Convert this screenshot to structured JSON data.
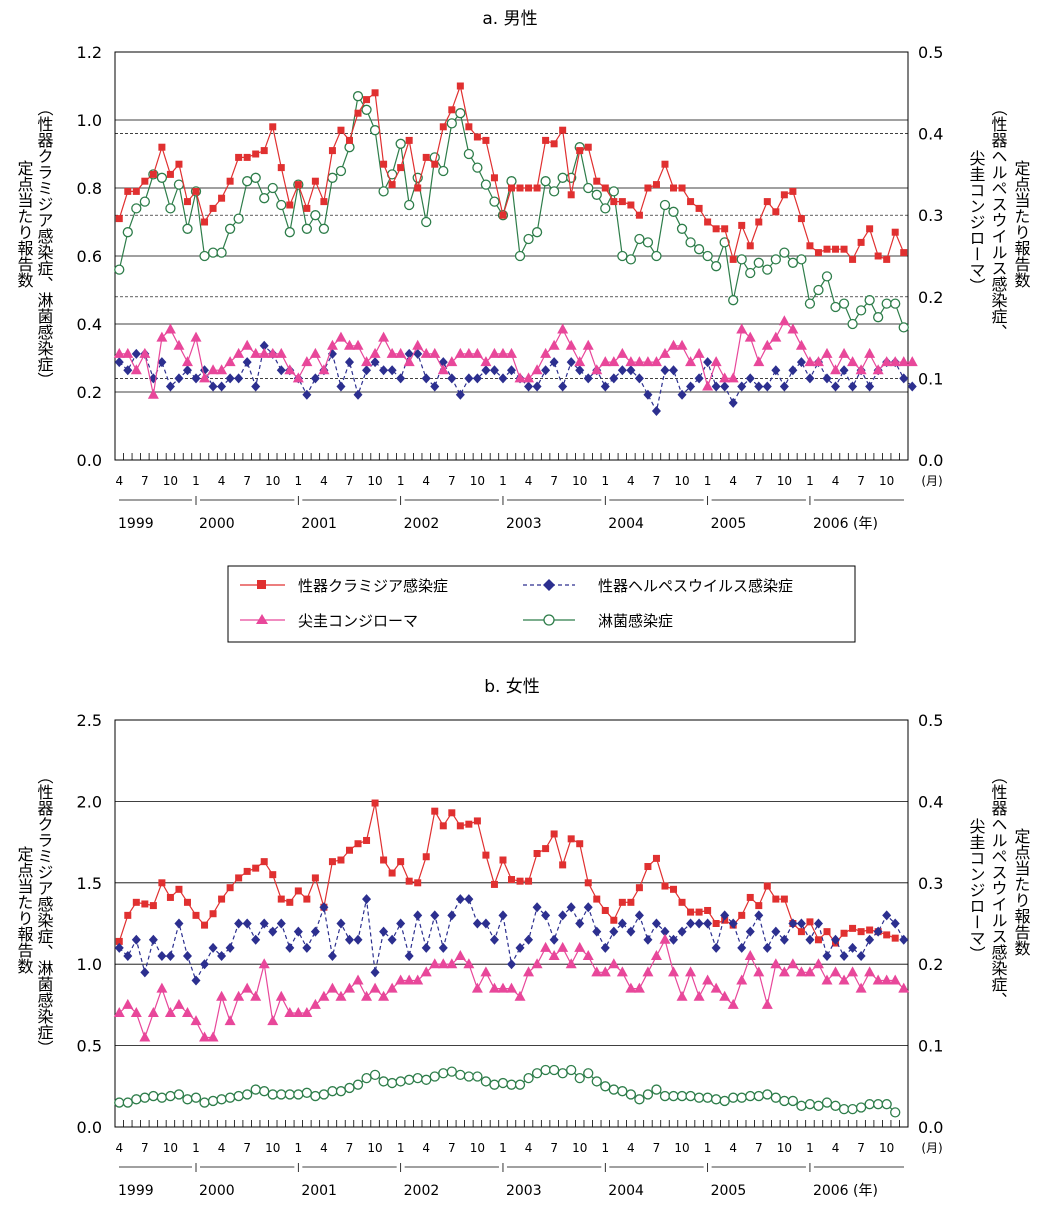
{
  "chart_data": [
    {
      "type": "line",
      "title": "a. 男性",
      "left_axis_label": [
        "定点当たり報告数",
        "（性器クラミジア感染症、淋菌感染症）"
      ],
      "right_axis_label": [
        "定点当たり報告数",
        "（性器ヘルペスウイルス感染症、",
        "尖圭コンジローマ）"
      ],
      "left_ylim": [
        0,
        1.2
      ],
      "left_ticks": [
        "0.0",
        "0.2",
        "0.4",
        "0.6",
        "0.8",
        "1.0",
        "1.2"
      ],
      "right_ylim": [
        0,
        0.5
      ],
      "right_ticks": [
        "0.0",
        "0.1",
        "0.2",
        "0.3",
        "0.4",
        "0.5"
      ],
      "x_start": "1999-04",
      "x_month_labels": [
        "4",
        "7",
        "10",
        "1",
        "4",
        "7",
        "10",
        "1",
        "4",
        "7",
        "10",
        "1",
        "4",
        "7",
        "10",
        "1",
        "4",
        "7",
        "10",
        "1",
        "4",
        "7",
        "10",
        "1",
        "4",
        "7",
        "10",
        "1",
        "4",
        "7",
        "10",
        "(月)"
      ],
      "x_year_labels": [
        "1999",
        "2000",
        "2001",
        "2002",
        "2003",
        "2004",
        "2005",
        "2006 (年)"
      ],
      "series": [
        {
          "name": "性器クラミジア感染症",
          "axis": "left",
          "color": "#e03030",
          "marker": "square",
          "style": "solid",
          "values": [
            0.71,
            0.79,
            0.79,
            0.82,
            0.84,
            0.92,
            0.84,
            0.87,
            0.76,
            0.79,
            0.7,
            0.74,
            0.77,
            0.82,
            0.89,
            0.89,
            0.9,
            0.91,
            0.98,
            0.86,
            0.75,
            0.81,
            0.74,
            0.82,
            0.76,
            0.91,
            0.97,
            0.94,
            1.02,
            1.06,
            1.08,
            0.87,
            0.81,
            0.86,
            0.94,
            0.8,
            0.89,
            0.87,
            0.98,
            1.03,
            1.1,
            0.98,
            0.95,
            0.94,
            0.83,
            0.72,
            0.8,
            0.8,
            0.8,
            0.8,
            0.94,
            0.93,
            0.97,
            0.78,
            0.91,
            0.92,
            0.82,
            0.8,
            0.76,
            0.76,
            0.75,
            0.72,
            0.8,
            0.81,
            0.87,
            0.8,
            0.8,
            0.76,
            0.74,
            0.7,
            0.68,
            0.68,
            0.59,
            0.69,
            0.63,
            0.7,
            0.76,
            0.73,
            0.78,
            0.79,
            0.71,
            0.63,
            0.61,
            0.62,
            0.62,
            0.62,
            0.59,
            0.64,
            0.68,
            0.6,
            0.59,
            0.67,
            0.61
          ]
        },
        {
          "name": "性器ヘルペスウイルス感染症",
          "axis": "right",
          "color": "#2c2f8f",
          "marker": "diamond",
          "style": "dashed",
          "values": [
            0.12,
            0.11,
            0.13,
            0.13,
            0.1,
            0.12,
            0.09,
            0.1,
            0.11,
            0.1,
            0.11,
            0.09,
            0.09,
            0.1,
            0.1,
            0.12,
            0.09,
            0.14,
            0.13,
            0.11,
            0.11,
            0.1,
            0.08,
            0.1,
            0.11,
            0.13,
            0.09,
            0.12,
            0.08,
            0.11,
            0.12,
            0.11,
            0.11,
            0.1,
            0.13,
            0.13,
            0.1,
            0.09,
            0.12,
            0.1,
            0.08,
            0.1,
            0.1,
            0.11,
            0.11,
            0.1,
            0.11,
            0.1,
            0.09,
            0.09,
            0.11,
            0.12,
            0.09,
            0.12,
            0.11,
            0.1,
            0.11,
            0.09,
            0.1,
            0.11,
            0.11,
            0.1,
            0.08,
            0.06,
            0.11,
            0.11,
            0.08,
            0.09,
            0.1,
            0.12,
            0.09,
            0.09,
            0.07,
            0.09,
            0.1,
            0.09,
            0.09,
            0.11,
            0.09,
            0.11,
            0.12,
            0.1,
            0.12,
            0.1,
            0.09,
            0.11,
            0.09,
            0.11,
            0.09,
            0.11,
            0.12,
            0.12,
            0.1,
            0.09
          ]
        },
        {
          "name": "尖圭コンジローマ",
          "axis": "right",
          "color": "#e8479a",
          "marker": "triangle",
          "style": "solid",
          "values": [
            0.13,
            0.13,
            0.11,
            0.13,
            0.08,
            0.15,
            0.16,
            0.14,
            0.12,
            0.15,
            0.1,
            0.11,
            0.11,
            0.12,
            0.13,
            0.14,
            0.13,
            0.13,
            0.13,
            0.13,
            0.11,
            0.1,
            0.12,
            0.13,
            0.11,
            0.14,
            0.15,
            0.14,
            0.14,
            0.12,
            0.13,
            0.15,
            0.13,
            0.13,
            0.12,
            0.14,
            0.13,
            0.13,
            0.11,
            0.12,
            0.13,
            0.13,
            0.13,
            0.12,
            0.13,
            0.13,
            0.13,
            0.1,
            0.1,
            0.11,
            0.13,
            0.14,
            0.16,
            0.14,
            0.12,
            0.14,
            0.11,
            0.12,
            0.12,
            0.13,
            0.12,
            0.12,
            0.12,
            0.12,
            0.13,
            0.14,
            0.14,
            0.12,
            0.13,
            0.09,
            0.12,
            0.1,
            0.1,
            0.16,
            0.15,
            0.12,
            0.14,
            0.15,
            0.17,
            0.16,
            0.14,
            0.12,
            0.12,
            0.13,
            0.11,
            0.13,
            0.12,
            0.11,
            0.13,
            0.11,
            0.12,
            0.12,
            0.12,
            0.12
          ]
        },
        {
          "name": "淋菌感染症",
          "axis": "left",
          "color": "#2e7d4a",
          "marker": "circle-open",
          "style": "solid",
          "values": [
            0.56,
            0.67,
            0.74,
            0.76,
            0.84,
            0.83,
            0.74,
            0.81,
            0.68,
            0.79,
            0.6,
            0.61,
            0.61,
            0.68,
            0.71,
            0.82,
            0.83,
            0.77,
            0.8,
            0.75,
            0.67,
            0.81,
            0.68,
            0.72,
            0.68,
            0.83,
            0.85,
            0.92,
            1.07,
            1.03,
            0.97,
            0.79,
            0.84,
            0.93,
            0.75,
            0.83,
            0.7,
            0.89,
            0.85,
            0.99,
            1.02,
            0.9,
            0.86,
            0.81,
            0.76,
            0.72,
            0.82,
            0.6,
            0.65,
            0.67,
            0.82,
            0.79,
            0.83,
            0.83,
            0.92,
            0.8,
            0.78,
            0.74,
            0.79,
            0.6,
            0.59,
            0.65,
            0.64,
            0.6,
            0.75,
            0.73,
            0.68,
            0.64,
            0.62,
            0.6,
            0.57,
            0.64,
            0.47,
            0.59,
            0.55,
            0.58,
            0.56,
            0.59,
            0.61,
            0.58,
            0.59,
            0.46,
            0.5,
            0.54,
            0.45,
            0.46,
            0.4,
            0.44,
            0.47,
            0.42,
            0.46,
            0.46,
            0.39
          ]
        }
      ],
      "legend": [
        "性器クラミジア感染症",
        "性器ヘルペスウイルス感染症",
        "尖圭コンジローマ",
        "淋菌感染症"
      ]
    },
    {
      "type": "line",
      "title": "b. 女性",
      "left_axis_label": [
        "定点当たり報告数",
        "（性器クラミジア感染症、淋菌感染症）"
      ],
      "right_axis_label": [
        "定点当たり報告数",
        "（性器ヘルペスウイルス感染症、",
        "尖圭コンジローマ）"
      ],
      "left_ylim": [
        0,
        2.5
      ],
      "left_ticks": [
        "0.0",
        "0.5",
        "1.0",
        "1.5",
        "2.0",
        "2.5"
      ],
      "right_ylim": [
        0,
        0.5
      ],
      "right_ticks": [
        "0.0",
        "0.1",
        "0.2",
        "0.3",
        "0.4",
        "0.5"
      ],
      "x_start": "1999-04",
      "x_month_labels": [
        "4",
        "7",
        "10",
        "1",
        "4",
        "7",
        "10",
        "1",
        "4",
        "7",
        "10",
        "1",
        "4",
        "7",
        "10",
        "1",
        "4",
        "7",
        "10",
        "1",
        "4",
        "7",
        "10",
        "1",
        "4",
        "7",
        "10",
        "1",
        "4",
        "7",
        "10",
        "(月)"
      ],
      "x_year_labels": [
        "1999",
        "2000",
        "2001",
        "2002",
        "2003",
        "2004",
        "2005",
        "2006 (年)"
      ],
      "series": [
        {
          "name": "性器クラミジア感染症",
          "axis": "left",
          "color": "#e03030",
          "marker": "square",
          "style": "solid",
          "values": [
            1.14,
            1.3,
            1.38,
            1.37,
            1.36,
            1.5,
            1.41,
            1.46,
            1.38,
            1.3,
            1.24,
            1.31,
            1.4,
            1.47,
            1.53,
            1.57,
            1.59,
            1.63,
            1.55,
            1.4,
            1.38,
            1.45,
            1.4,
            1.53,
            1.35,
            1.63,
            1.64,
            1.7,
            1.74,
            1.76,
            1.99,
            1.64,
            1.56,
            1.63,
            1.51,
            1.5,
            1.66,
            1.94,
            1.85,
            1.93,
            1.85,
            1.86,
            1.88,
            1.67,
            1.49,
            1.64,
            1.52,
            1.51,
            1.51,
            1.68,
            1.71,
            1.8,
            1.61,
            1.77,
            1.74,
            1.5,
            1.4,
            1.33,
            1.27,
            1.38,
            1.38,
            1.47,
            1.6,
            1.65,
            1.48,
            1.46,
            1.38,
            1.32,
            1.32,
            1.33,
            1.25,
            1.27,
            1.24,
            1.3,
            1.41,
            1.36,
            1.48,
            1.4,
            1.4,
            1.25,
            1.2,
            1.26,
            1.15,
            1.2,
            1.13,
            1.19,
            1.22,
            1.2,
            1.21,
            1.2,
            1.18,
            1.16
          ]
        },
        {
          "name": "性器ヘルペスウイルス感染症",
          "axis": "left_alt",
          "color": "#2c2f8f",
          "marker": "diamond",
          "style": "dashed",
          "values": [
            0.22,
            0.21,
            0.23,
            0.19,
            0.23,
            0.21,
            0.21,
            0.25,
            0.21,
            0.18,
            0.2,
            0.22,
            0.21,
            0.22,
            0.25,
            0.25,
            0.23,
            0.25,
            0.24,
            0.25,
            0.22,
            0.24,
            0.22,
            0.24,
            0.27,
            0.21,
            0.25,
            0.23,
            0.23,
            0.28,
            0.19,
            0.24,
            0.23,
            0.25,
            0.21,
            0.26,
            0.22,
            0.26,
            0.22,
            0.26,
            0.28,
            0.28,
            0.25,
            0.25,
            0.23,
            0.26,
            0.2,
            0.22,
            0.23,
            0.27,
            0.26,
            0.23,
            0.26,
            0.27,
            0.25,
            0.27,
            0.24,
            0.22,
            0.24,
            0.25,
            0.24,
            0.26,
            0.23,
            0.25,
            0.24,
            0.23,
            0.24,
            0.25,
            0.25,
            0.25,
            0.22,
            0.26,
            0.25,
            0.22,
            0.24,
            0.26,
            0.22,
            0.24,
            0.23,
            0.25,
            0.25,
            0.23,
            0.25,
            0.21,
            0.23,
            0.21,
            0.22,
            0.21,
            0.23,
            0.24,
            0.26,
            0.25,
            0.23
          ]
        },
        {
          "name": "尖圭コンジローマ",
          "axis": "left_alt",
          "color": "#e8479a",
          "marker": "triangle",
          "style": "solid",
          "values": [
            0.14,
            0.15,
            0.14,
            0.11,
            0.14,
            0.17,
            0.14,
            0.15,
            0.14,
            0.13,
            0.11,
            0.11,
            0.16,
            0.13,
            0.16,
            0.17,
            0.16,
            0.2,
            0.13,
            0.16,
            0.14,
            0.14,
            0.14,
            0.15,
            0.16,
            0.17,
            0.16,
            0.17,
            0.18,
            0.16,
            0.17,
            0.16,
            0.17,
            0.18,
            0.18,
            0.18,
            0.19,
            0.2,
            0.2,
            0.2,
            0.21,
            0.2,
            0.17,
            0.19,
            0.17,
            0.17,
            0.17,
            0.16,
            0.19,
            0.2,
            0.22,
            0.21,
            0.22,
            0.2,
            0.22,
            0.21,
            0.19,
            0.19,
            0.2,
            0.19,
            0.17,
            0.17,
            0.19,
            0.21,
            0.23,
            0.19,
            0.16,
            0.19,
            0.16,
            0.18,
            0.17,
            0.16,
            0.15,
            0.18,
            0.21,
            0.19,
            0.15,
            0.2,
            0.19,
            0.2,
            0.19,
            0.19,
            0.2,
            0.18,
            0.19,
            0.18,
            0.19,
            0.17,
            0.19,
            0.18,
            0.18,
            0.18,
            0.17
          ]
        },
        {
          "name": "淋菌感染症",
          "axis": "left",
          "color": "#2e7d4a",
          "marker": "circle-open",
          "style": "solid",
          "values": [
            0.15,
            0.15,
            0.17,
            0.18,
            0.19,
            0.18,
            0.19,
            0.2,
            0.17,
            0.18,
            0.15,
            0.16,
            0.17,
            0.18,
            0.19,
            0.2,
            0.23,
            0.22,
            0.2,
            0.2,
            0.2,
            0.2,
            0.21,
            0.19,
            0.2,
            0.22,
            0.22,
            0.24,
            0.26,
            0.3,
            0.32,
            0.28,
            0.27,
            0.28,
            0.29,
            0.3,
            0.29,
            0.31,
            0.33,
            0.34,
            0.32,
            0.31,
            0.31,
            0.28,
            0.26,
            0.27,
            0.26,
            0.26,
            0.3,
            0.33,
            0.35,
            0.35,
            0.33,
            0.35,
            0.3,
            0.33,
            0.28,
            0.25,
            0.23,
            0.22,
            0.2,
            0.17,
            0.2,
            0.23,
            0.19,
            0.19,
            0.19,
            0.19,
            0.18,
            0.18,
            0.17,
            0.16,
            0.18,
            0.18,
            0.19,
            0.19,
            0.2,
            0.18,
            0.16,
            0.16,
            0.13,
            0.14,
            0.13,
            0.15,
            0.13,
            0.11,
            0.11,
            0.12,
            0.14,
            0.14,
            0.14,
            0.09
          ]
        }
      ],
      "legend": []
    }
  ]
}
